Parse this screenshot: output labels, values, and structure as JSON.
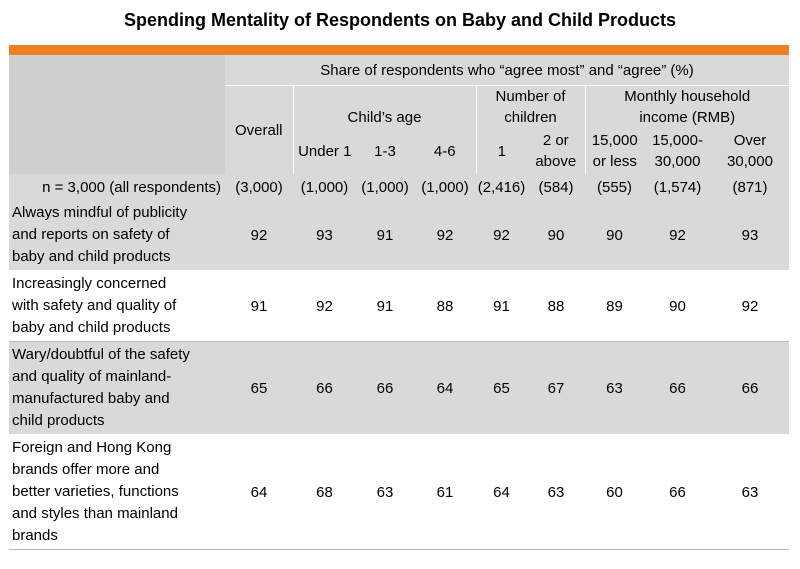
{
  "title": "Spending Mentality of Respondents on Baby and Child Products",
  "colors": {
    "accent": "#f07f22",
    "header_bg": "#d9d9d9",
    "grey_row": "#d9d9d9"
  },
  "header": {
    "span_title": "Share of respondents who “agree most” and “agree” (%)",
    "overall": "Overall",
    "childs_age": "Child’s age",
    "num_children_l1": "Number of",
    "num_children_l2": "children",
    "income_l1": "Monthly household",
    "income_l2": "income (RMB)",
    "sub": {
      "under1": "Under 1",
      "age13": "1-3",
      "age46": "4-6",
      "one": "1",
      "two_l1": "2 or",
      "two_l2": "above",
      "inc1_l1": "15,000",
      "inc1_l2": "or less",
      "inc2_l1": "15,000-",
      "inc2_l2": "30,000",
      "inc3_l1": "Over",
      "inc3_l2": "30,000"
    },
    "n_label": "n = 3,000 (all respondents)",
    "n_values": [
      "(3,000)",
      "(1,000)",
      "(1,000)",
      "(1,000)",
      "(2,416)",
      "(584)",
      "(555)",
      "(1,574)",
      "(871)"
    ]
  },
  "chart_data": {
    "type": "table",
    "title": "Spending Mentality of Respondents on Baby and Child Products",
    "columns": [
      "Overall",
      "Under 1",
      "1-3",
      "4-6",
      "1",
      "2 or above",
      "15,000 or less",
      "15,000-30,000",
      "Over 30,000"
    ],
    "rows": [
      {
        "label_lines": [
          "Always mindful of publicity",
          "and reports on safety of",
          "baby and child products"
        ],
        "values": [
          "92",
          "93",
          "91",
          "92",
          "92",
          "90",
          "90",
          "92",
          "93"
        ]
      },
      {
        "label_lines": [
          "Increasingly concerned",
          "with safety and quality of",
          "baby and child products"
        ],
        "values": [
          "91",
          "92",
          "91",
          "88",
          "91",
          "88",
          "89",
          "90",
          "92"
        ]
      },
      {
        "label_lines": [
          "Wary/doubtful of the safety",
          "and quality of mainland-",
          "manufactured baby and",
          "child products"
        ],
        "values": [
          "65",
          "66",
          "66",
          "64",
          "65",
          "67",
          "63",
          "66",
          "66"
        ]
      },
      {
        "label_lines": [
          "Foreign and Hong Kong",
          "brands offer more and",
          "better varieties, functions",
          "and styles than mainland",
          "brands"
        ],
        "values": [
          "64",
          "68",
          "63",
          "61",
          "64",
          "63",
          "60",
          "66",
          "63"
        ]
      }
    ]
  }
}
